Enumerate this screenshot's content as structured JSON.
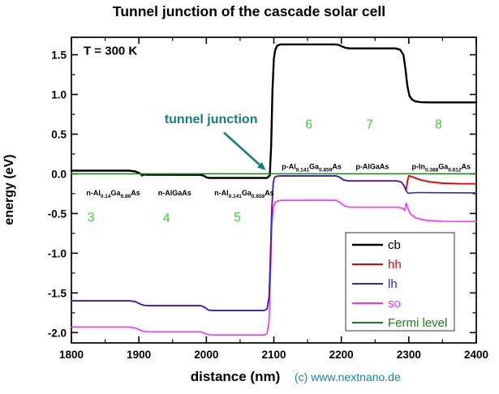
{
  "chart_data": {
    "type": "line",
    "title": "Tunnel junction of the cascade solar cell",
    "xlabel": "distance (nm)",
    "ylabel": "energy (eV)",
    "copyright": "(c) www.nextnano.de",
    "copyright_color": "#0f8a9c",
    "grid": false,
    "legend_position": "lower-right-inside",
    "xlim": [
      1800,
      2400
    ],
    "ylim": [
      -2.13,
      1.72
    ],
    "x_major_ticks": [
      1800,
      1900,
      2000,
      2100,
      2200,
      2300,
      2400
    ],
    "x_major_tick_labels": [
      "1800",
      "1900",
      "2000",
      "2100",
      "2200",
      "2300",
      "2400"
    ],
    "x_minor_ticks": [
      1850,
      1950,
      2050,
      2150,
      2250,
      2350
    ],
    "y_major_ticks": [
      1.5,
      1.0,
      0.5,
      0.0,
      -0.5,
      -1.0,
      -1.5,
      -2.0
    ],
    "y_major_tick_labels": [
      "1.5",
      "1.0",
      "0.5",
      "0.0",
      "-0.5",
      "-1.0",
      "-1.5",
      "-2.0"
    ],
    "y_minor_ticks": [
      1.25,
      0.75,
      0.25,
      -0.25,
      -0.75,
      -1.25,
      -1.75
    ],
    "draw_order": [
      "so",
      "hh",
      "lh",
      "cb",
      "Fermi level"
    ],
    "series": [
      {
        "label": "cb",
        "color": "#000000",
        "width": 2.4,
        "points": [
          [
            1800,
            0.04
          ],
          [
            1885,
            0.04
          ],
          [
            1894,
            0.032
          ],
          [
            1900,
            0.012
          ],
          [
            1903,
            -0.005
          ],
          [
            1905,
            -0.022
          ],
          [
            1907,
            -0.008
          ],
          [
            1912,
            -0.012
          ],
          [
            1990,
            -0.013
          ],
          [
            1996,
            -0.022
          ],
          [
            2000,
            -0.045
          ],
          [
            2004,
            -0.052
          ],
          [
            2090,
            -0.052
          ],
          [
            2094,
            -0.02
          ],
          [
            2096,
            0.35
          ],
          [
            2098,
            1.05
          ],
          [
            2100,
            1.45
          ],
          [
            2102,
            1.56
          ],
          [
            2105,
            1.615
          ],
          [
            2110,
            1.63
          ],
          [
            2190,
            1.63
          ],
          [
            2196,
            1.625
          ],
          [
            2201,
            1.605
          ],
          [
            2207,
            1.585
          ],
          [
            2213,
            1.58
          ],
          [
            2280,
            1.58
          ],
          [
            2287,
            1.565
          ],
          [
            2292,
            1.5
          ],
          [
            2295,
            1.32
          ],
          [
            2298,
            1.1
          ],
          [
            2301,
            0.98
          ],
          [
            2305,
            0.935
          ],
          [
            2310,
            0.912
          ],
          [
            2318,
            0.902
          ],
          [
            2330,
            0.9
          ],
          [
            2400,
            0.9
          ]
        ]
      },
      {
        "label": "hh",
        "color": "#ee0000",
        "width": 1.9,
        "points": [
          [
            1800,
            -1.6
          ],
          [
            1886,
            -1.6
          ],
          [
            1895,
            -1.61
          ],
          [
            1902,
            -1.64
          ],
          [
            1908,
            -1.657
          ],
          [
            1914,
            -1.66
          ],
          [
            1992,
            -1.66
          ],
          [
            1998,
            -1.685
          ],
          [
            2003,
            -1.715
          ],
          [
            2008,
            -1.72
          ],
          [
            2086,
            -1.72
          ],
          [
            2090,
            -1.7
          ],
          [
            2093,
            -1.55
          ],
          [
            2095,
            -1.05
          ],
          [
            2097,
            -0.45
          ],
          [
            2099,
            -0.12
          ],
          [
            2101,
            -0.045
          ],
          [
            2104,
            -0.03
          ],
          [
            2110,
            -0.026
          ],
          [
            2192,
            -0.025
          ],
          [
            2198,
            -0.045
          ],
          [
            2203,
            -0.075
          ],
          [
            2209,
            -0.088
          ],
          [
            2215,
            -0.09
          ],
          [
            2283,
            -0.09
          ],
          [
            2289,
            -0.105
          ],
          [
            2293,
            -0.15
          ],
          [
            2296,
            -0.21
          ],
          [
            2298,
            -0.09
          ],
          [
            2300,
            -0.025
          ],
          [
            2303,
            -0.03
          ],
          [
            2309,
            -0.05
          ],
          [
            2317,
            -0.075
          ],
          [
            2330,
            -0.1
          ],
          [
            2350,
            -0.118
          ],
          [
            2375,
            -0.124
          ],
          [
            2400,
            -0.125
          ]
        ]
      },
      {
        "label": "lh",
        "color": "#2a2ace",
        "width": 1.6,
        "points": [
          [
            1800,
            -1.6
          ],
          [
            1886,
            -1.6
          ],
          [
            1895,
            -1.61
          ],
          [
            1902,
            -1.64
          ],
          [
            1908,
            -1.657
          ],
          [
            1914,
            -1.66
          ],
          [
            1992,
            -1.66
          ],
          [
            1998,
            -1.685
          ],
          [
            2003,
            -1.715
          ],
          [
            2008,
            -1.72
          ],
          [
            2086,
            -1.72
          ],
          [
            2090,
            -1.7
          ],
          [
            2093,
            -1.55
          ],
          [
            2095,
            -1.05
          ],
          [
            2097,
            -0.45
          ],
          [
            2099,
            -0.12
          ],
          [
            2101,
            -0.045
          ],
          [
            2104,
            -0.03
          ],
          [
            2110,
            -0.026
          ],
          [
            2192,
            -0.025
          ],
          [
            2198,
            -0.045
          ],
          [
            2203,
            -0.075
          ],
          [
            2209,
            -0.088
          ],
          [
            2215,
            -0.09
          ],
          [
            2283,
            -0.09
          ],
          [
            2289,
            -0.105
          ],
          [
            2293,
            -0.15
          ],
          [
            2296,
            -0.215
          ],
          [
            2299,
            -0.245
          ],
          [
            2304,
            -0.24
          ],
          [
            2315,
            -0.236
          ],
          [
            2335,
            -0.238
          ],
          [
            2400,
            -0.24
          ]
        ]
      },
      {
        "label": "so",
        "color": "#ff2bff",
        "width": 1.6,
        "points": [
          [
            1800,
            -1.93
          ],
          [
            1886,
            -1.93
          ],
          [
            1896,
            -1.945
          ],
          [
            1903,
            -1.975
          ],
          [
            1910,
            -1.988
          ],
          [
            1916,
            -1.99
          ],
          [
            1992,
            -1.99
          ],
          [
            1999,
            -2.015
          ],
          [
            2005,
            -2.028
          ],
          [
            2012,
            -2.03
          ],
          [
            2086,
            -2.03
          ],
          [
            2090,
            -2.01
          ],
          [
            2093,
            -1.85
          ],
          [
            2095,
            -1.3
          ],
          [
            2097,
            -0.65
          ],
          [
            2099,
            -0.43
          ],
          [
            2102,
            -0.36
          ],
          [
            2106,
            -0.34
          ],
          [
            2112,
            -0.335
          ],
          [
            2192,
            -0.333
          ],
          [
            2198,
            -0.36
          ],
          [
            2204,
            -0.4
          ],
          [
            2211,
            -0.418
          ],
          [
            2218,
            -0.42
          ],
          [
            2285,
            -0.42
          ],
          [
            2291,
            -0.435
          ],
          [
            2294,
            -0.46
          ],
          [
            2296,
            -0.37
          ],
          [
            2298,
            -0.42
          ],
          [
            2302,
            -0.5
          ],
          [
            2310,
            -0.555
          ],
          [
            2325,
            -0.585
          ],
          [
            2350,
            -0.598
          ],
          [
            2400,
            -0.6
          ]
        ]
      },
      {
        "label": "Fermi level",
        "color": "#1e8020",
        "width": 1.5,
        "points": [
          [
            1800,
            0.0
          ],
          [
            2400,
            0.0
          ]
        ]
      }
    ],
    "annotations": {
      "temperature": {
        "text": "T = 300 K",
        "x": 1818,
        "y": 1.5,
        "color": "#000000"
      },
      "tunnel_junction": {
        "text": "tunnel junction",
        "x": 2007,
        "y": 0.64,
        "color": "#12807f",
        "arrow": {
          "x1": 2026,
          "y1": 0.52,
          "x2": 2086,
          "y2": 0.06
        }
      },
      "region_numbers": {
        "color": "#3bd43b",
        "items": [
          {
            "text": "3",
            "x": 1829,
            "y": -0.6
          },
          {
            "text": "4",
            "x": 1941,
            "y": -0.61
          },
          {
            "text": "5",
            "x": 2046,
            "y": -0.6
          },
          {
            "text": "6",
            "x": 2152,
            "y": 0.57
          },
          {
            "text": "7",
            "x": 2242,
            "y": 0.57
          },
          {
            "text": "8",
            "x": 2344,
            "y": 0.57
          }
        ]
      },
      "material_labels": {
        "color": "#000000",
        "items": [
          {
            "formula": "n-Al[0.14]Ga[0.86]As",
            "x": 1862,
            "y": -0.27
          },
          {
            "formula": "n-AlGaAs",
            "x": 1953,
            "y": -0.27
          },
          {
            "formula": "n-Al[0.141]Ga[0.859]As",
            "x": 2056,
            "y": -0.27
          },
          {
            "formula": "p-Al[0.141]Ga[0.859]As",
            "x": 2156,
            "y": 0.06
          },
          {
            "formula": "p-AlGaAs",
            "x": 2246,
            "y": 0.06
          },
          {
            "formula": "p-In[0.388]Ga[0.612]As",
            "x": 2348,
            "y": 0.06
          }
        ]
      }
    }
  }
}
